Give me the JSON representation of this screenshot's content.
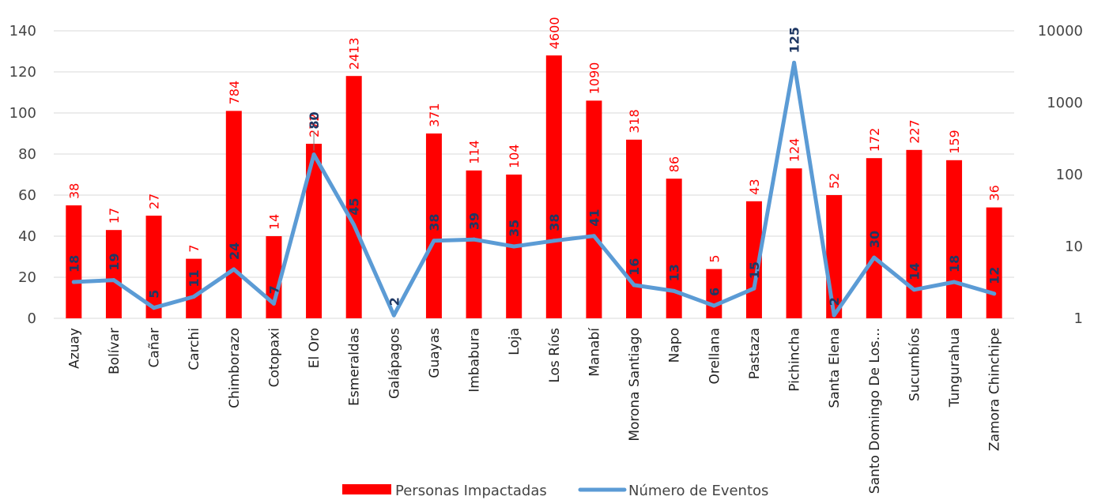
{
  "chart_data": {
    "type": "bar",
    "combo": "bar+line",
    "categories": [
      "Azuay",
      "Bolívar",
      "Cañar",
      "Carchi",
      "Chimborazo",
      "Cotopaxi",
      "El Oro",
      "Esmeraldas",
      "Galápagos",
      "Guayas",
      "Imbabura",
      "Loja",
      "Los Ríos",
      "Manabí",
      "Morona Santiago",
      "Napo",
      "Orellana",
      "Pastaza",
      "Pichincha",
      "Santa Elena",
      "Santo Domingo De Los...",
      "Sucumbíos",
      "Tungurahua",
      "Zamora Chinchipe"
    ],
    "series": [
      {
        "name": "Personas Impactadas",
        "chart_type": "bar",
        "axis": "left",
        "color": "#ff0000",
        "values": [
          55,
          43,
          50,
          29,
          101,
          40,
          85,
          118,
          null,
          90,
          72,
          70,
          128,
          106,
          87,
          68,
          24,
          57,
          73,
          60,
          78,
          82,
          77,
          54
        ],
        "data_labels": [
          "38",
          "17",
          "27",
          "7",
          "784",
          "14",
          "272",
          "2413",
          "",
          "371",
          "114",
          "104",
          "4600",
          "1090",
          "318",
          "86",
          "5",
          "43",
          "124",
          "52",
          "172",
          "227",
          "159",
          "36"
        ]
      },
      {
        "name": "Número de Eventos",
        "chart_type": "line",
        "axis": "right",
        "scale": "log",
        "color": "#5b9bd5",
        "values": [
          3.2,
          3.4,
          1.4,
          2.0,
          4.8,
          1.6,
          190,
          20,
          1.1,
          12,
          12.5,
          10,
          12,
          14,
          2.9,
          2.4,
          1.5,
          2.6,
          3600,
          1.1,
          7.0,
          2.5,
          3.2,
          2.2
        ],
        "data_labels": [
          "18",
          "19",
          "5",
          "11",
          "24",
          "7",
          "80",
          "45",
          "2",
          "38",
          "39",
          "35",
          "38",
          "41",
          "16",
          "13",
          "6",
          "15",
          "125",
          "2",
          "30",
          "14",
          "18",
          "12"
        ]
      }
    ],
    "y_left": {
      "ticks": [
        "0",
        "20",
        "40",
        "60",
        "80",
        "100",
        "120",
        "140"
      ],
      "ylim": [
        0,
        140
      ]
    },
    "y_right": {
      "ticks": [
        "1",
        "10",
        "100",
        "1000",
        "10000"
      ],
      "scale": "log",
      "ylim": [
        1,
        10000
      ]
    },
    "grid": true,
    "legend": "bottom",
    "title": "",
    "xlabel": "",
    "ylabel": ""
  }
}
